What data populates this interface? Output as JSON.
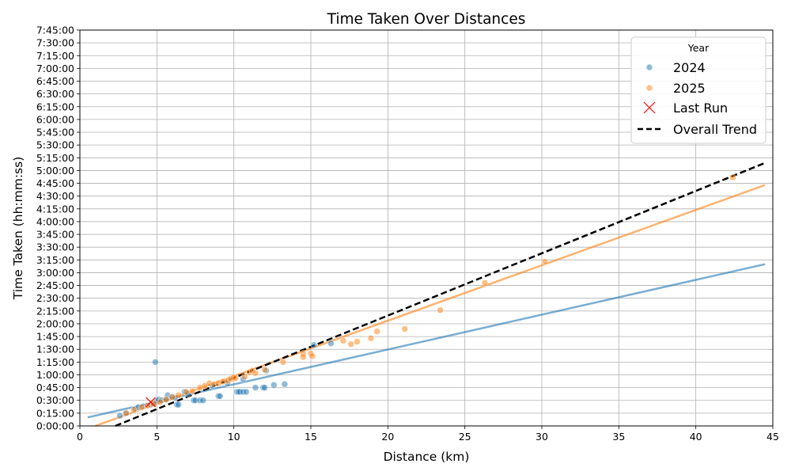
{
  "chart_data": {
    "type": "scatter",
    "title": "Time Taken Over Distances",
    "xlabel": "Distance (km)",
    "ylabel": "Time Taken (hh:mm:ss)",
    "xlim": [
      0,
      45
    ],
    "ylim_minutes": [
      0,
      465
    ],
    "x_ticks": [
      0,
      5,
      10,
      15,
      20,
      25,
      30,
      35,
      40,
      45
    ],
    "y_ticks_minutes": [
      0,
      15,
      30,
      45,
      60,
      75,
      90,
      105,
      120,
      135,
      150,
      165,
      180,
      195,
      210,
      225,
      240,
      255,
      270,
      285,
      300,
      315,
      330,
      345,
      360,
      375,
      390,
      405,
      420,
      435,
      450,
      465
    ],
    "y_tick_labels": [
      "0:00:00",
      "0:15:00",
      "0:30:00",
      "0:45:00",
      "1:00:00",
      "1:15:00",
      "1:30:00",
      "1:45:00",
      "2:00:00",
      "2:15:00",
      "2:30:00",
      "2:45:00",
      "3:00:00",
      "3:15:00",
      "3:30:00",
      "3:45:00",
      "4:00:00",
      "4:15:00",
      "4:30:00",
      "4:45:00",
      "5:00:00",
      "5:15:00",
      "5:30:00",
      "5:45:00",
      "6:00:00",
      "6:15:00",
      "6:30:00",
      "6:45:00",
      "7:00:00",
      "7:15:00",
      "7:30:00",
      "7:45:00"
    ],
    "grid": true,
    "legend": {
      "title": "Year",
      "position": "top-right",
      "entries": [
        "2024",
        "2025",
        "Last Run",
        "Overall Trend"
      ]
    },
    "series": [
      {
        "name": "2024",
        "color": "#1f77b4",
        "points": [
          [
            2.6,
            12
          ],
          [
            3.0,
            15
          ],
          [
            3.6,
            20
          ],
          [
            3.8,
            22
          ],
          [
            4.1,
            23
          ],
          [
            4.6,
            25
          ],
          [
            4.9,
            27
          ],
          [
            5.0,
            29
          ],
          [
            5.1,
            31
          ],
          [
            5.3,
            30
          ],
          [
            5.6,
            31
          ],
          [
            5.7,
            36
          ],
          [
            6.0,
            34
          ],
          [
            6.2,
            33
          ],
          [
            6.3,
            25
          ],
          [
            6.4,
            25
          ],
          [
            6.8,
            40
          ],
          [
            7.0,
            38
          ],
          [
            7.4,
            30
          ],
          [
            7.5,
            30
          ],
          [
            7.8,
            30
          ],
          [
            8.0,
            30
          ],
          [
            9.0,
            35
          ],
          [
            9.1,
            35
          ],
          [
            10.2,
            40
          ],
          [
            10.3,
            40
          ],
          [
            10.4,
            40
          ],
          [
            10.6,
            40
          ],
          [
            10.8,
            40
          ],
          [
            11.4,
            45
          ],
          [
            11.9,
            45
          ],
          [
            12.0,
            45
          ],
          [
            12.6,
            48
          ],
          [
            13.3,
            49
          ],
          [
            12.1,
            65
          ],
          [
            4.9,
            75
          ],
          [
            10.6,
            55
          ],
          [
            16.3,
            97
          ],
          [
            15.2,
            95
          ],
          [
            9.6,
            50
          ],
          [
            8.6,
            47
          ]
        ]
      },
      {
        "name": "2025",
        "color": "#ff7f0e",
        "points": [
          [
            3.0,
            15
          ],
          [
            3.5,
            19
          ],
          [
            4.0,
            22
          ],
          [
            4.4,
            24
          ],
          [
            4.8,
            26
          ],
          [
            5.2,
            28
          ],
          [
            5.6,
            31
          ],
          [
            6.0,
            34
          ],
          [
            6.4,
            36
          ],
          [
            6.9,
            40
          ],
          [
            7.3,
            41
          ],
          [
            7.8,
            45
          ],
          [
            8.1,
            47
          ],
          [
            8.4,
            50
          ],
          [
            8.7,
            49
          ],
          [
            9.0,
            50
          ],
          [
            9.3,
            52
          ],
          [
            9.6,
            53
          ],
          [
            9.8,
            55
          ],
          [
            10.0,
            57
          ],
          [
            10.1,
            56
          ],
          [
            10.7,
            58
          ],
          [
            11.0,
            63
          ],
          [
            11.2,
            65
          ],
          [
            11.4,
            62
          ],
          [
            12.0,
            66
          ],
          [
            13.2,
            75
          ],
          [
            14.5,
            85
          ],
          [
            14.5,
            81
          ],
          [
            15.0,
            85
          ],
          [
            15.1,
            82
          ],
          [
            17.1,
            100
          ],
          [
            17.6,
            96
          ],
          [
            18.0,
            99
          ],
          [
            18.9,
            103
          ],
          [
            19.3,
            111
          ],
          [
            21.1,
            114
          ],
          [
            23.4,
            136
          ],
          [
            26.3,
            168
          ],
          [
            30.2,
            193
          ],
          [
            42.4,
            292
          ]
        ]
      },
      {
        "name": "Last Run",
        "color": "#ff0000",
        "points": [
          [
            4.6,
            28
          ]
        ]
      }
    ],
    "trend_lines": [
      {
        "name": "2024 trend",
        "color": "#1f77b4",
        "x": [
          0.5,
          44.5
        ],
        "y": [
          10,
          190
        ]
      },
      {
        "name": "2025 trend",
        "color": "#ff7f0e",
        "x": [
          1.0,
          44.5
        ],
        "y": [
          0,
          283
        ]
      },
      {
        "name": "Overall Trend",
        "color": "#000000",
        "x": [
          2.3,
          44.5
        ],
        "y": [
          0,
          309
        ]
      }
    ]
  }
}
